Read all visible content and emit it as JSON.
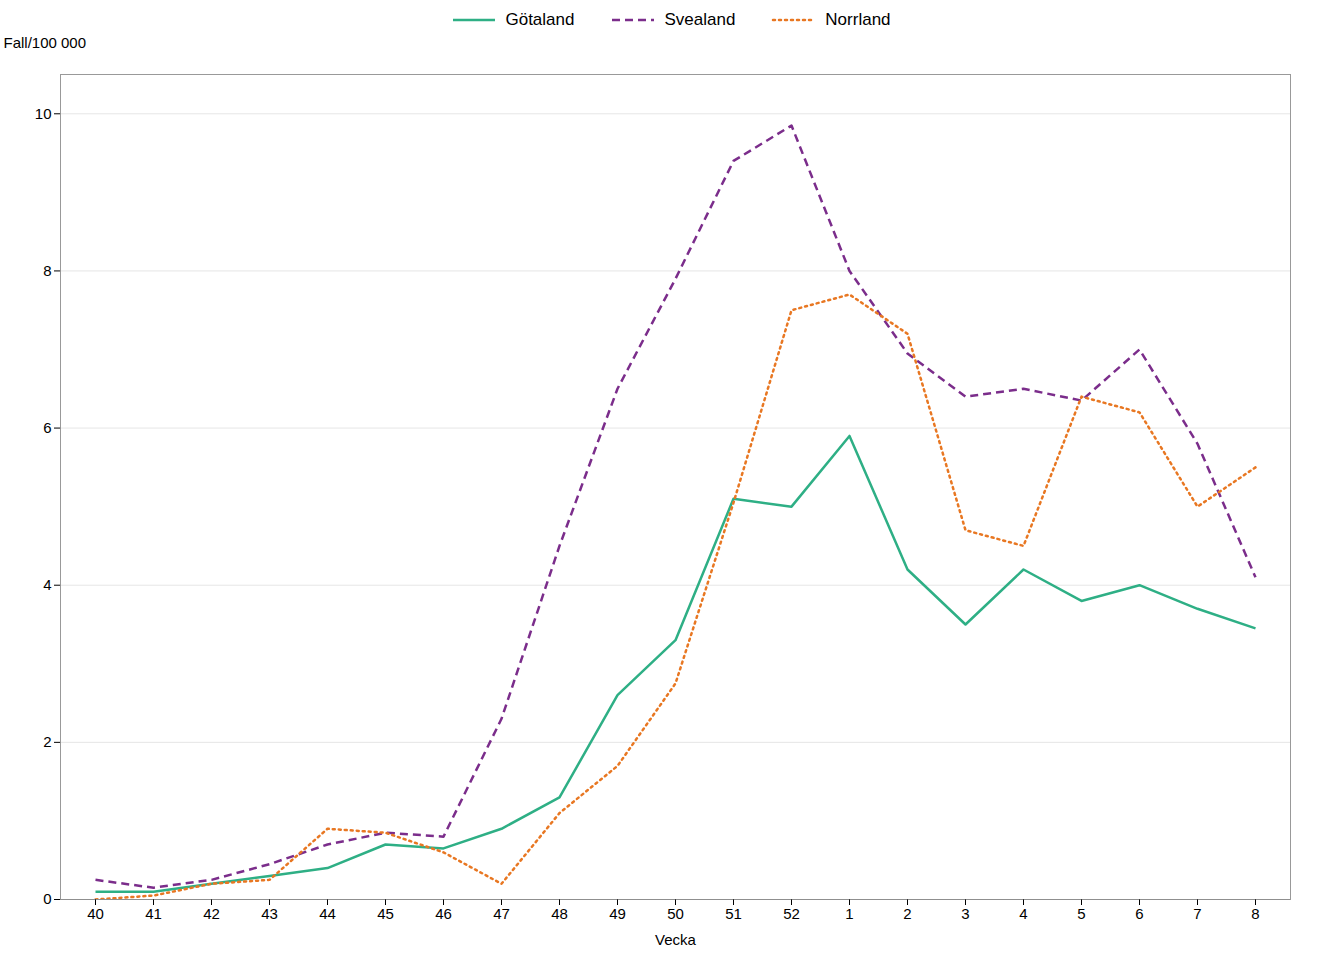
{
  "chart_data": {
    "type": "line",
    "xlabel": "Vecka",
    "ylabel": "Fall/100 000",
    "categories": [
      "40",
      "41",
      "42",
      "43",
      "44",
      "45",
      "46",
      "47",
      "48",
      "49",
      "50",
      "51",
      "52",
      "1",
      "2",
      "3",
      "4",
      "5",
      "6",
      "7",
      "8"
    ],
    "series": [
      {
        "name": "Götaland",
        "color": "#2EAF85",
        "line_style": "solid",
        "values": [
          0.1,
          0.1,
          0.2,
          0.3,
          0.4,
          0.7,
          0.65,
          0.9,
          1.3,
          2.6,
          3.3,
          5.1,
          5.0,
          5.9,
          4.2,
          3.5,
          4.2,
          3.8,
          4.0,
          3.7,
          3.45
        ]
      },
      {
        "name": "Svealand",
        "color": "#7B2D8B",
        "line_style": "dashed",
        "values": [
          0.25,
          0.15,
          0.25,
          0.45,
          0.7,
          0.85,
          0.8,
          2.3,
          4.5,
          6.5,
          7.9,
          9.4,
          9.85,
          8.0,
          6.95,
          6.4,
          6.5,
          6.35,
          7.0,
          5.8,
          4.1
        ]
      },
      {
        "name": "Norrland",
        "color": "#E87722",
        "line_style": "dotted",
        "values": [
          0.0,
          0.05,
          0.2,
          0.25,
          0.9,
          0.85,
          0.6,
          0.2,
          1.1,
          1.7,
          2.75,
          5.05,
          7.5,
          7.7,
          7.2,
          4.7,
          4.5,
          6.4,
          6.2,
          5.0,
          5.5
        ]
      }
    ],
    "ylim": [
      0,
      10.5
    ],
    "yticks": [
      0,
      2,
      4,
      6,
      8,
      10
    ],
    "grid": true,
    "legend": "top"
  }
}
